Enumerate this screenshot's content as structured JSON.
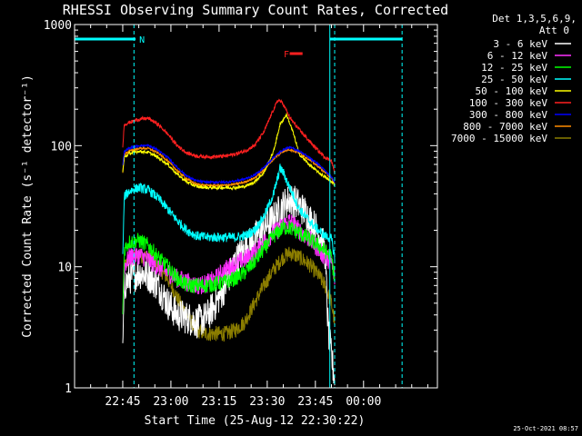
{
  "chart_data": {
    "type": "line",
    "title": "RHESSI Observing Summary Count Rates, Corrected",
    "xlabel": "Start Time (25-Aug-12 22:30:22)",
    "ylabel": "Corrected Count Rate (s⁻¹ detector⁻¹)",
    "y_scale": "log",
    "ylim": [
      1,
      1000
    ],
    "xlim_minutes": [
      0,
      113
    ],
    "x_tick_labels": [
      {
        "minutes": 15,
        "label": "22:45"
      },
      {
        "minutes": 30,
        "label": "23:00"
      },
      {
        "minutes": 45,
        "label": "23:15"
      },
      {
        "minutes": 60,
        "label": "23:30"
      },
      {
        "minutes": 75,
        "label": "23:45"
      },
      {
        "minutes": 90,
        "label": "00:00"
      }
    ],
    "y_tick_labels": [
      {
        "value": 1,
        "label": "1"
      },
      {
        "value": 10,
        "label": "10"
      },
      {
        "value": 100,
        "label": "100"
      },
      {
        "value": 1000,
        "label": "1000"
      }
    ],
    "legend": {
      "header_line1": "Det 1,3,5,6,9,",
      "header_line2": "Att 0",
      "placement": "right"
    },
    "timestamp": "25-Oct-2021 08:57",
    "flags": [
      {
        "label": "N",
        "start": 0,
        "end": 19,
        "level": 0.96,
        "color": "#00ffff",
        "label_at": 19
      },
      {
        "label": "",
        "start": 79.5,
        "end": 102,
        "level": 0.96,
        "color": "#00ffff"
      },
      {
        "label": "F",
        "start": 67,
        "end": 71,
        "level": 0.92,
        "color": "#ff2020",
        "label_at": 64
      }
    ],
    "vlines": [
      {
        "minute": 18.5,
        "style": "dashed"
      },
      {
        "minute": 79.5,
        "style": "solid"
      },
      {
        "minute": 81.0,
        "style": "dashed"
      },
      {
        "minute": 102.0,
        "style": "dashed"
      }
    ],
    "series": [
      {
        "name": "3 - 6 keV",
        "color": "#ffffff",
        "noise": 0.28,
        "points": [
          [
            15,
            2
          ],
          [
            15.5,
            7
          ],
          [
            17,
            8
          ],
          [
            20,
            9
          ],
          [
            23,
            8.5
          ],
          [
            26,
            7
          ],
          [
            29,
            5
          ],
          [
            32,
            4
          ],
          [
            35,
            3.8
          ],
          [
            38,
            3.5
          ],
          [
            41,
            3.8
          ],
          [
            44,
            5
          ],
          [
            47,
            7
          ],
          [
            50,
            11
          ],
          [
            53,
            14
          ],
          [
            56,
            17
          ],
          [
            59,
            21
          ],
          [
            62,
            25
          ],
          [
            65,
            32
          ],
          [
            67,
            36
          ],
          [
            69,
            34
          ],
          [
            72,
            28
          ],
          [
            75,
            21
          ],
          [
            77,
            17
          ],
          [
            78,
            13
          ],
          [
            79,
            3
          ],
          [
            80,
            1.8
          ],
          [
            81,
            1.2
          ]
        ]
      },
      {
        "name": "6 - 12 keV",
        "color": "#ff30ff",
        "noise": 0.16,
        "points": [
          [
            15,
            4
          ],
          [
            15.5,
            10
          ],
          [
            17,
            12
          ],
          [
            20,
            12.5
          ],
          [
            23,
            11.5
          ],
          [
            26,
            10
          ],
          [
            29,
            9
          ],
          [
            32,
            8
          ],
          [
            35,
            7.5
          ],
          [
            38,
            7
          ],
          [
            41,
            7.2
          ],
          [
            44,
            8
          ],
          [
            47,
            9.5
          ],
          [
            50,
            10.5
          ],
          [
            53,
            11.5
          ],
          [
            56,
            13
          ],
          [
            59,
            16
          ],
          [
            62,
            19
          ],
          [
            65,
            22
          ],
          [
            67,
            24
          ],
          [
            70,
            20
          ],
          [
            73,
            17
          ],
          [
            76,
            14
          ],
          [
            78,
            12
          ],
          [
            80,
            11
          ],
          [
            81,
            8
          ]
        ]
      },
      {
        "name": "12 - 25 keV",
        "color": "#00ff00",
        "noise": 0.13,
        "points": [
          [
            15,
            4
          ],
          [
            15.5,
            14
          ],
          [
            17,
            16
          ],
          [
            20,
            16.5
          ],
          [
            23,
            15
          ],
          [
            26,
            12
          ],
          [
            29,
            10
          ],
          [
            32,
            8
          ],
          [
            35,
            7
          ],
          [
            38,
            7
          ],
          [
            41,
            7
          ],
          [
            44,
            7.2
          ],
          [
            47,
            7.5
          ],
          [
            50,
            8
          ],
          [
            53,
            9
          ],
          [
            56,
            11
          ],
          [
            59,
            14
          ],
          [
            62,
            18
          ],
          [
            65,
            21
          ],
          [
            67,
            21
          ],
          [
            70,
            19
          ],
          [
            73,
            17
          ],
          [
            76,
            15
          ],
          [
            78,
            13.5
          ],
          [
            80,
            12
          ],
          [
            81,
            8
          ]
        ]
      },
      {
        "name": "25 - 50 keV",
        "color": "#00ffff",
        "noise": 0.08,
        "points": [
          [
            15,
            12
          ],
          [
            15.5,
            38
          ],
          [
            17,
            42
          ],
          [
            20,
            45
          ],
          [
            23,
            43
          ],
          [
            26,
            37
          ],
          [
            29,
            30
          ],
          [
            32,
            24
          ],
          [
            35,
            20
          ],
          [
            38,
            18
          ],
          [
            41,
            17.5
          ],
          [
            44,
            17.5
          ],
          [
            47,
            17.5
          ],
          [
            50,
            17.5
          ],
          [
            53,
            18
          ],
          [
            56,
            20
          ],
          [
            59,
            26
          ],
          [
            62,
            40
          ],
          [
            64,
            65
          ],
          [
            65,
            60
          ],
          [
            67,
            45
          ],
          [
            70,
            30
          ],
          [
            73,
            24
          ],
          [
            76,
            20
          ],
          [
            78,
            18
          ],
          [
            80,
            17
          ],
          [
            81,
            12
          ]
        ]
      },
      {
        "name": "50 - 100 keV",
        "color": "#ffff00",
        "noise": 0.025,
        "points": [
          [
            15,
            60
          ],
          [
            15.5,
            80
          ],
          [
            17,
            86
          ],
          [
            20,
            90
          ],
          [
            23,
            88
          ],
          [
            26,
            80
          ],
          [
            29,
            70
          ],
          [
            32,
            58
          ],
          [
            35,
            50
          ],
          [
            38,
            46
          ],
          [
            41,
            45
          ],
          [
            44,
            45
          ],
          [
            47,
            45
          ],
          [
            50,
            45
          ],
          [
            53,
            46
          ],
          [
            56,
            50
          ],
          [
            59,
            60
          ],
          [
            62,
            90
          ],
          [
            64,
            150
          ],
          [
            66,
            180
          ],
          [
            68,
            130
          ],
          [
            70,
            85
          ],
          [
            73,
            70
          ],
          [
            76,
            60
          ],
          [
            78,
            55
          ],
          [
            80,
            50
          ],
          [
            81,
            48
          ]
        ]
      },
      {
        "name": "100 - 300 keV",
        "color": "#ff2020",
        "noise": 0.03,
        "points": [
          [
            15,
            100
          ],
          [
            15.5,
            150
          ],
          [
            17,
            155
          ],
          [
            20,
            165
          ],
          [
            23,
            168
          ],
          [
            26,
            150
          ],
          [
            29,
            125
          ],
          [
            32,
            100
          ],
          [
            35,
            87
          ],
          [
            38,
            82
          ],
          [
            41,
            81
          ],
          [
            44,
            81
          ],
          [
            47,
            82
          ],
          [
            50,
            85
          ],
          [
            53,
            90
          ],
          [
            56,
            100
          ],
          [
            59,
            130
          ],
          [
            62,
            200
          ],
          [
            63.5,
            240
          ],
          [
            65,
            220
          ],
          [
            67,
            170
          ],
          [
            70,
            135
          ],
          [
            73,
            110
          ],
          [
            76,
            90
          ],
          [
            78,
            80
          ],
          [
            80,
            75
          ],
          [
            81,
            60
          ]
        ]
      },
      {
        "name": "300 - 800 keV",
        "color": "#0000ff",
        "noise": 0.018,
        "points": [
          [
            15,
            70
          ],
          [
            15.5,
            90
          ],
          [
            17,
            95
          ],
          [
            20,
            100
          ],
          [
            23,
            100
          ],
          [
            26,
            92
          ],
          [
            29,
            80
          ],
          [
            32,
            66
          ],
          [
            35,
            56
          ],
          [
            38,
            51
          ],
          [
            41,
            50
          ],
          [
            44,
            50
          ],
          [
            47,
            50
          ],
          [
            50,
            51
          ],
          [
            53,
            53
          ],
          [
            56,
            57
          ],
          [
            59,
            66
          ],
          [
            62,
            80
          ],
          [
            65,
            93
          ],
          [
            67,
            97
          ],
          [
            70,
            90
          ],
          [
            73,
            80
          ],
          [
            76,
            70
          ],
          [
            78,
            62
          ],
          [
            80,
            55
          ],
          [
            81,
            50
          ]
        ]
      },
      {
        "name": "800 - 7000 keV",
        "color": "#ff8c00",
        "noise": 0.018,
        "points": [
          [
            15,
            60
          ],
          [
            15.5,
            85
          ],
          [
            17,
            90
          ],
          [
            20,
            95
          ],
          [
            23,
            95
          ],
          [
            26,
            87
          ],
          [
            29,
            75
          ],
          [
            32,
            62
          ],
          [
            35,
            53
          ],
          [
            38,
            48
          ],
          [
            41,
            47
          ],
          [
            44,
            47
          ],
          [
            47,
            47
          ],
          [
            50,
            48
          ],
          [
            53,
            50
          ],
          [
            56,
            54
          ],
          [
            59,
            63
          ],
          [
            62,
            78
          ],
          [
            65,
            90
          ],
          [
            67,
            93
          ],
          [
            70,
            87
          ],
          [
            73,
            77
          ],
          [
            76,
            67
          ],
          [
            78,
            60
          ],
          [
            80,
            54
          ],
          [
            81,
            48
          ]
        ]
      },
      {
        "name": "7000 - 15000 keV",
        "color": "#8b7d00",
        "noise": 0.13,
        "points": [
          [
            15,
            4
          ],
          [
            15.5,
            10
          ],
          [
            17,
            11.5
          ],
          [
            20,
            12.5
          ],
          [
            23,
            12
          ],
          [
            26,
            10
          ],
          [
            29,
            8
          ],
          [
            32,
            5.5
          ],
          [
            35,
            4
          ],
          [
            38,
            3
          ],
          [
            41,
            2.8
          ],
          [
            44,
            2.8
          ],
          [
            47,
            2.8
          ],
          [
            50,
            3
          ],
          [
            53,
            3.5
          ],
          [
            56,
            5
          ],
          [
            59,
            7
          ],
          [
            62,
            9.5
          ],
          [
            65,
            12
          ],
          [
            67,
            13
          ],
          [
            70,
            12
          ],
          [
            73,
            10.5
          ],
          [
            76,
            8.5
          ],
          [
            78,
            7
          ],
          [
            80,
            5
          ],
          [
            81,
            3.5
          ]
        ]
      }
    ]
  }
}
